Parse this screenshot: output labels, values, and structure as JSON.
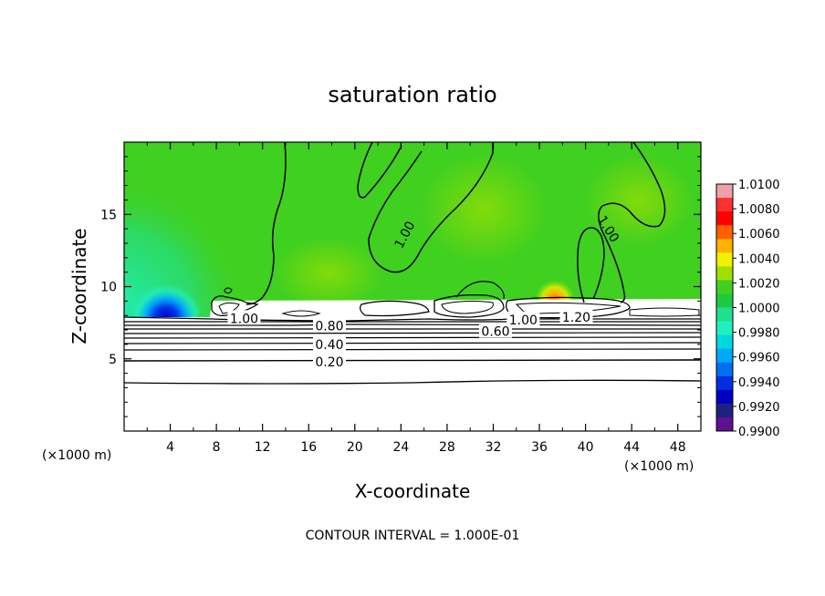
{
  "chart_data": {
    "type": "heatmap",
    "title": "saturation ratio",
    "xlabel": "X-coordinate",
    "ylabel": "Z-coordinate",
    "x_unit_label": "(×1000 m)",
    "x_unit_label_right": "(×1000 m)",
    "xlim": [
      0,
      50
    ],
    "ylim": [
      0,
      20
    ],
    "x_ticks": [
      4,
      8,
      12,
      16,
      20,
      24,
      28,
      32,
      36,
      40,
      44,
      48
    ],
    "y_ticks": [
      5,
      10,
      15
    ],
    "footer": "CONTOUR INTERVAL = 1.000E-01",
    "contour_labels": [
      {
        "text": "1.00",
        "x": 10.4,
        "z": 7.8,
        "angle": 0
      },
      {
        "text": "0.80",
        "x": 17.8,
        "z": 7.3,
        "angle": 0
      },
      {
        "text": "0.40",
        "x": 17.8,
        "z": 6.0,
        "angle": 0
      },
      {
        "text": "0.20",
        "x": 17.8,
        "z": 4.8,
        "angle": 0
      },
      {
        "text": "0.60",
        "x": 32.2,
        "z": 6.9,
        "angle": 0
      },
      {
        "text": "1.00",
        "x": 34.6,
        "z": 7.7,
        "angle": 0
      },
      {
        "text": "1.20",
        "x": 39.2,
        "z": 7.9,
        "angle": 0
      },
      {
        "text": "1.00",
        "x": 24.3,
        "z": 13.6,
        "angle": -62
      },
      {
        "text": "1.00",
        "x": 42.0,
        "z": 14.0,
        "angle": 58
      }
    ],
    "colorbar": {
      "min": 0.99,
      "max": 1.01,
      "labels": [
        "1.0100",
        "1.0080",
        "1.0060",
        "1.0040",
        "1.0020",
        "1.0000",
        "0.9980",
        "0.9960",
        "0.9940",
        "0.9920",
        "0.9900"
      ],
      "colors": [
        "#f0a0a8",
        "#ff3030",
        "#ff0000",
        "#ff6000",
        "#ffb000",
        "#f0f000",
        "#a0e000",
        "#40d020",
        "#20c840",
        "#20e090",
        "#20f0c0",
        "#00d8e0",
        "#00a8f8",
        "#0070f0",
        "#0030e0",
        "#0000c0",
        "#202080",
        "#601090"
      ]
    }
  }
}
